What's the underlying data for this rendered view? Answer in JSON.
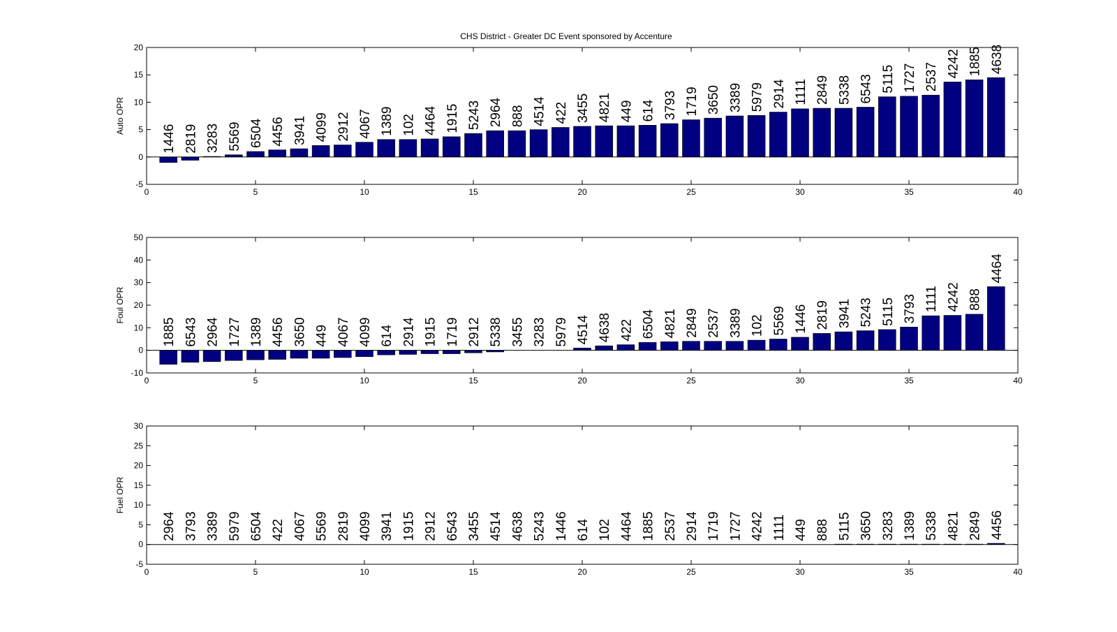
{
  "figure_title": "CHS District - Greater DC Event sponsored by Accenture",
  "colors": {
    "bar": "#000080",
    "axis": "#000000",
    "background": "#ffffff"
  },
  "chart_data": [
    {
      "type": "bar",
      "title": "CHS District - Greater DC Event sponsored by Accenture",
      "xlabel": "",
      "ylabel": "Auto OPR",
      "xlim": [
        0,
        40
      ],
      "ylim": [
        -5,
        20
      ],
      "xticks": [
        0,
        5,
        10,
        15,
        20,
        25,
        30,
        35,
        40
      ],
      "yticks": [
        -5,
        0,
        5,
        10,
        15,
        20
      ],
      "x": [
        1,
        2,
        3,
        4,
        5,
        6,
        7,
        8,
        9,
        10,
        11,
        12,
        13,
        14,
        15,
        16,
        17,
        18,
        19,
        20,
        21,
        22,
        23,
        24,
        25,
        26,
        27,
        28,
        29,
        30,
        31,
        32,
        33,
        34,
        35,
        36,
        37,
        38,
        39
      ],
      "values": [
        -1.0,
        -0.6,
        0.1,
        0.4,
        1.0,
        1.3,
        1.5,
        2.1,
        2.2,
        2.7,
        3.2,
        3.2,
        3.3,
        3.7,
        4.3,
        4.8,
        4.8,
        5.0,
        5.4,
        5.6,
        5.7,
        5.7,
        5.8,
        6.1,
        6.8,
        7.1,
        7.5,
        7.6,
        8.2,
        8.8,
        8.9,
        8.9,
        9.1,
        11.0,
        11.1,
        11.3,
        13.7,
        14.1,
        14.5
      ],
      "labels": [
        "1446",
        "2819",
        "3283",
        "5569",
        "6504",
        "4456",
        "3941",
        "4099",
        "2912",
        "4067",
        "1389",
        "102",
        "4464",
        "1915",
        "5243",
        "2964",
        "888",
        "4514",
        "422",
        "3455",
        "4821",
        "449",
        "614",
        "3793",
        "1719",
        "3650",
        "3389",
        "5979",
        "2914",
        "1111",
        "2849",
        "5338",
        "6543",
        "5115",
        "1727",
        "2537",
        "4242",
        "1885",
        "4638"
      ]
    },
    {
      "type": "bar",
      "title": "",
      "xlabel": "",
      "ylabel": "Foul OPR",
      "xlim": [
        0,
        40
      ],
      "ylim": [
        -10,
        50
      ],
      "xticks": [
        0,
        5,
        10,
        15,
        20,
        25,
        30,
        35,
        40
      ],
      "yticks": [
        -10,
        0,
        10,
        20,
        30,
        40,
        50
      ],
      "x": [
        1,
        2,
        3,
        4,
        5,
        6,
        7,
        8,
        9,
        10,
        11,
        12,
        13,
        14,
        15,
        16,
        17,
        18,
        19,
        20,
        21,
        22,
        23,
        24,
        25,
        26,
        27,
        28,
        29,
        30,
        31,
        32,
        33,
        34,
        35,
        36,
        37,
        38,
        39
      ],
      "values": [
        -6.2,
        -5.3,
        -5.0,
        -4.5,
        -4.2,
        -4.0,
        -3.5,
        -3.5,
        -3.2,
        -2.8,
        -2.0,
        -1.8,
        -1.5,
        -1.5,
        -1.1,
        -0.7,
        0,
        0,
        0,
        1.0,
        2.0,
        2.5,
        3.5,
        3.8,
        4.0,
        4.0,
        4.0,
        4.5,
        5.0,
        5.8,
        7.5,
        8.2,
        8.7,
        9.2,
        10.3,
        15.3,
        15.5,
        16.0,
        28.2
      ],
      "labels": [
        "1885",
        "6543",
        "2964",
        "1727",
        "1389",
        "4456",
        "3650",
        "449",
        "4067",
        "4099",
        "614",
        "2914",
        "1915",
        "1719",
        "2912",
        "5338",
        "3455",
        "3283",
        "5979",
        "4514",
        "4638",
        "422",
        "6504",
        "4821",
        "2849",
        "2537",
        "3389",
        "102",
        "5569",
        "1446",
        "2819",
        "3941",
        "5243",
        "5115",
        "3793",
        "1111",
        "4242",
        "888",
        "4464"
      ]
    },
    {
      "type": "bar",
      "title": "",
      "xlabel": "",
      "ylabel": "Fuel OPR",
      "xlim": [
        0,
        40
      ],
      "ylim": [
        -5,
        30
      ],
      "xticks": [
        0,
        5,
        10,
        15,
        20,
        25,
        30,
        35,
        40
      ],
      "yticks": [
        -5,
        0,
        5,
        10,
        15,
        20,
        25,
        30
      ],
      "x": [
        1,
        2,
        3,
        4,
        5,
        6,
        7,
        8,
        9,
        10,
        11,
        12,
        13,
        14,
        15,
        16,
        17,
        18,
        19,
        20,
        21,
        22,
        23,
        24,
        25,
        26,
        27,
        28,
        29,
        30,
        31,
        32,
        33,
        34,
        35,
        36,
        37,
        38,
        39
      ],
      "values": [
        0,
        0,
        0,
        0,
        0,
        0,
        0,
        0,
        0,
        0,
        0,
        0,
        0,
        0,
        0,
        0,
        0,
        0,
        0,
        0,
        0,
        0,
        0,
        0,
        0,
        0,
        0,
        0,
        0,
        0,
        0,
        0.1,
        0.1,
        0.1,
        0.1,
        0.1,
        0.1,
        0.1,
        0.3
      ],
      "labels": [
        "2964",
        "3793",
        "3389",
        "5979",
        "6504",
        "422",
        "4067",
        "5569",
        "2819",
        "4099",
        "3941",
        "1915",
        "2912",
        "6543",
        "3455",
        "4514",
        "4638",
        "5243",
        "1446",
        "614",
        "102",
        "4464",
        "1885",
        "2537",
        "2914",
        "1719",
        "1727",
        "4242",
        "1111",
        "449",
        "888",
        "5115",
        "3650",
        "3283",
        "1389",
        "5338",
        "4821",
        "2849",
        "4456"
      ]
    }
  ]
}
